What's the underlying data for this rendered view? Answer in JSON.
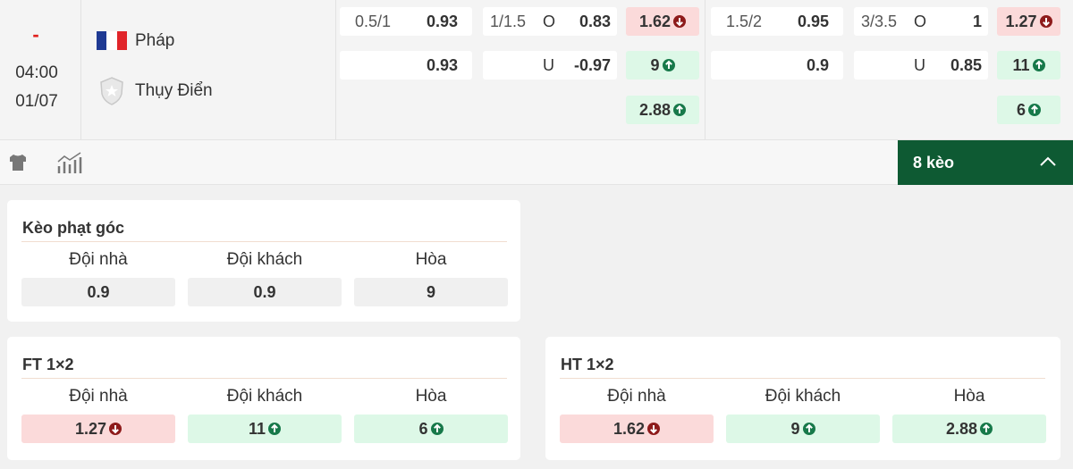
{
  "match": {
    "status": "-",
    "time": "04:00",
    "date": "01/07",
    "home_team": "Pháp",
    "away_team": "Thụy Điển"
  },
  "markets": [
    {
      "handicap": {
        "line": "0.5/1",
        "home": "0.93",
        "away": "0.93"
      },
      "over_under": {
        "line": "1/1.5",
        "over_label": "O",
        "over": "0.83",
        "under_label": "U",
        "under": "-0.97"
      },
      "result": [
        {
          "value": "1.62",
          "trend": "down"
        },
        {
          "value": "9",
          "trend": "up"
        },
        {
          "value": "2.88",
          "trend": "up"
        }
      ]
    },
    {
      "handicap": {
        "line": "1.5/2",
        "home": "0.95",
        "away": "0.9"
      },
      "over_under": {
        "line": "3/3.5",
        "over_label": "O",
        "over": "1",
        "under_label": "U",
        "under": "0.85"
      },
      "result": [
        {
          "value": "1.27",
          "trend": "down"
        },
        {
          "value": "11",
          "trend": "up"
        },
        {
          "value": "6",
          "trend": "up"
        }
      ]
    }
  ],
  "toolbar": {
    "more_label": "8 kèo"
  },
  "cards": [
    {
      "title": "Kèo phạt góc",
      "columns": [
        "Đội nhà",
        "Đội khách",
        "Hòa"
      ],
      "odds": [
        {
          "value": "0.9"
        },
        {
          "value": "0.9"
        },
        {
          "value": "9"
        }
      ]
    },
    {
      "title": "FT 1×2",
      "columns": [
        "Đội nhà",
        "Đội khách",
        "Hòa"
      ],
      "odds": [
        {
          "value": "1.27",
          "trend": "down"
        },
        {
          "value": "11",
          "trend": "up"
        },
        {
          "value": "6",
          "trend": "up"
        }
      ]
    },
    {
      "title": "HT 1×2",
      "columns": [
        "Đội nhà",
        "Đội khách",
        "Hòa"
      ],
      "odds": [
        {
          "value": "1.62",
          "trend": "down"
        },
        {
          "value": "9",
          "trend": "up"
        },
        {
          "value": "2.88",
          "trend": "up"
        }
      ]
    }
  ]
}
